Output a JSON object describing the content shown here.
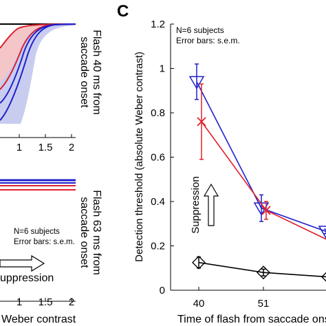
{
  "panel_c_label": "C",
  "left_panel": {
    "top": {
      "side_label_lines": [
        "Flash 40 ms from",
        "saccade onset"
      ],
      "tick_labels": [
        "1",
        "1.5",
        "2"
      ]
    },
    "bottom": {
      "side_label_lines": [
        "Flash 63 ms from",
        "saccade onset"
      ],
      "tick_labels": [
        "1",
        "1.5",
        "2"
      ],
      "note_lines": [
        "N=6 subjects",
        "Error bars: s.e.m."
      ],
      "arrow_label": "uppression",
      "xlabel": "Weber contrast"
    }
  },
  "annotation": {
    "note_lines": [
      "N=6 subjects",
      "Error bars: s.e.m."
    ],
    "arrow_label": "Suppression"
  },
  "colors": {
    "blue": "#1f1fcc",
    "red": "#e0202a",
    "black": "#000000",
    "red_fill": "#f4c6c8",
    "blue_fill": "#c8cdf0"
  },
  "chart_data": {
    "type": "line",
    "title": "",
    "xlabel": "Time of flash from saccade onset",
    "ylabel": "Detection threshold (absolute Weber contrast)",
    "x": [
      40,
      51,
      63
    ],
    "x_tick_labels": [
      "40",
      "51"
    ],
    "y_tick_labels": [
      "0",
      "0.2",
      "0.4",
      "0.6",
      "0.8",
      "1",
      "1.2"
    ],
    "ylim": [
      0,
      1.2
    ],
    "series": [
      {
        "color": "#1f1fcc",
        "marker": "triangle-down",
        "values": [
          0.94,
          0.37,
          0.265
        ],
        "err": [
          0.08,
          0.06,
          0.01
        ]
      },
      {
        "color": "#e0202a",
        "marker": "x",
        "values": [
          0.76,
          0.36,
          0.22
        ],
        "err": [
          0.17,
          0.04,
          0.03
        ]
      },
      {
        "color": "#000000",
        "marker": "diamond",
        "values": [
          0.125,
          0.08,
          0.06
        ],
        "err": [
          0.025,
          0.015,
          0.01
        ]
      }
    ]
  }
}
